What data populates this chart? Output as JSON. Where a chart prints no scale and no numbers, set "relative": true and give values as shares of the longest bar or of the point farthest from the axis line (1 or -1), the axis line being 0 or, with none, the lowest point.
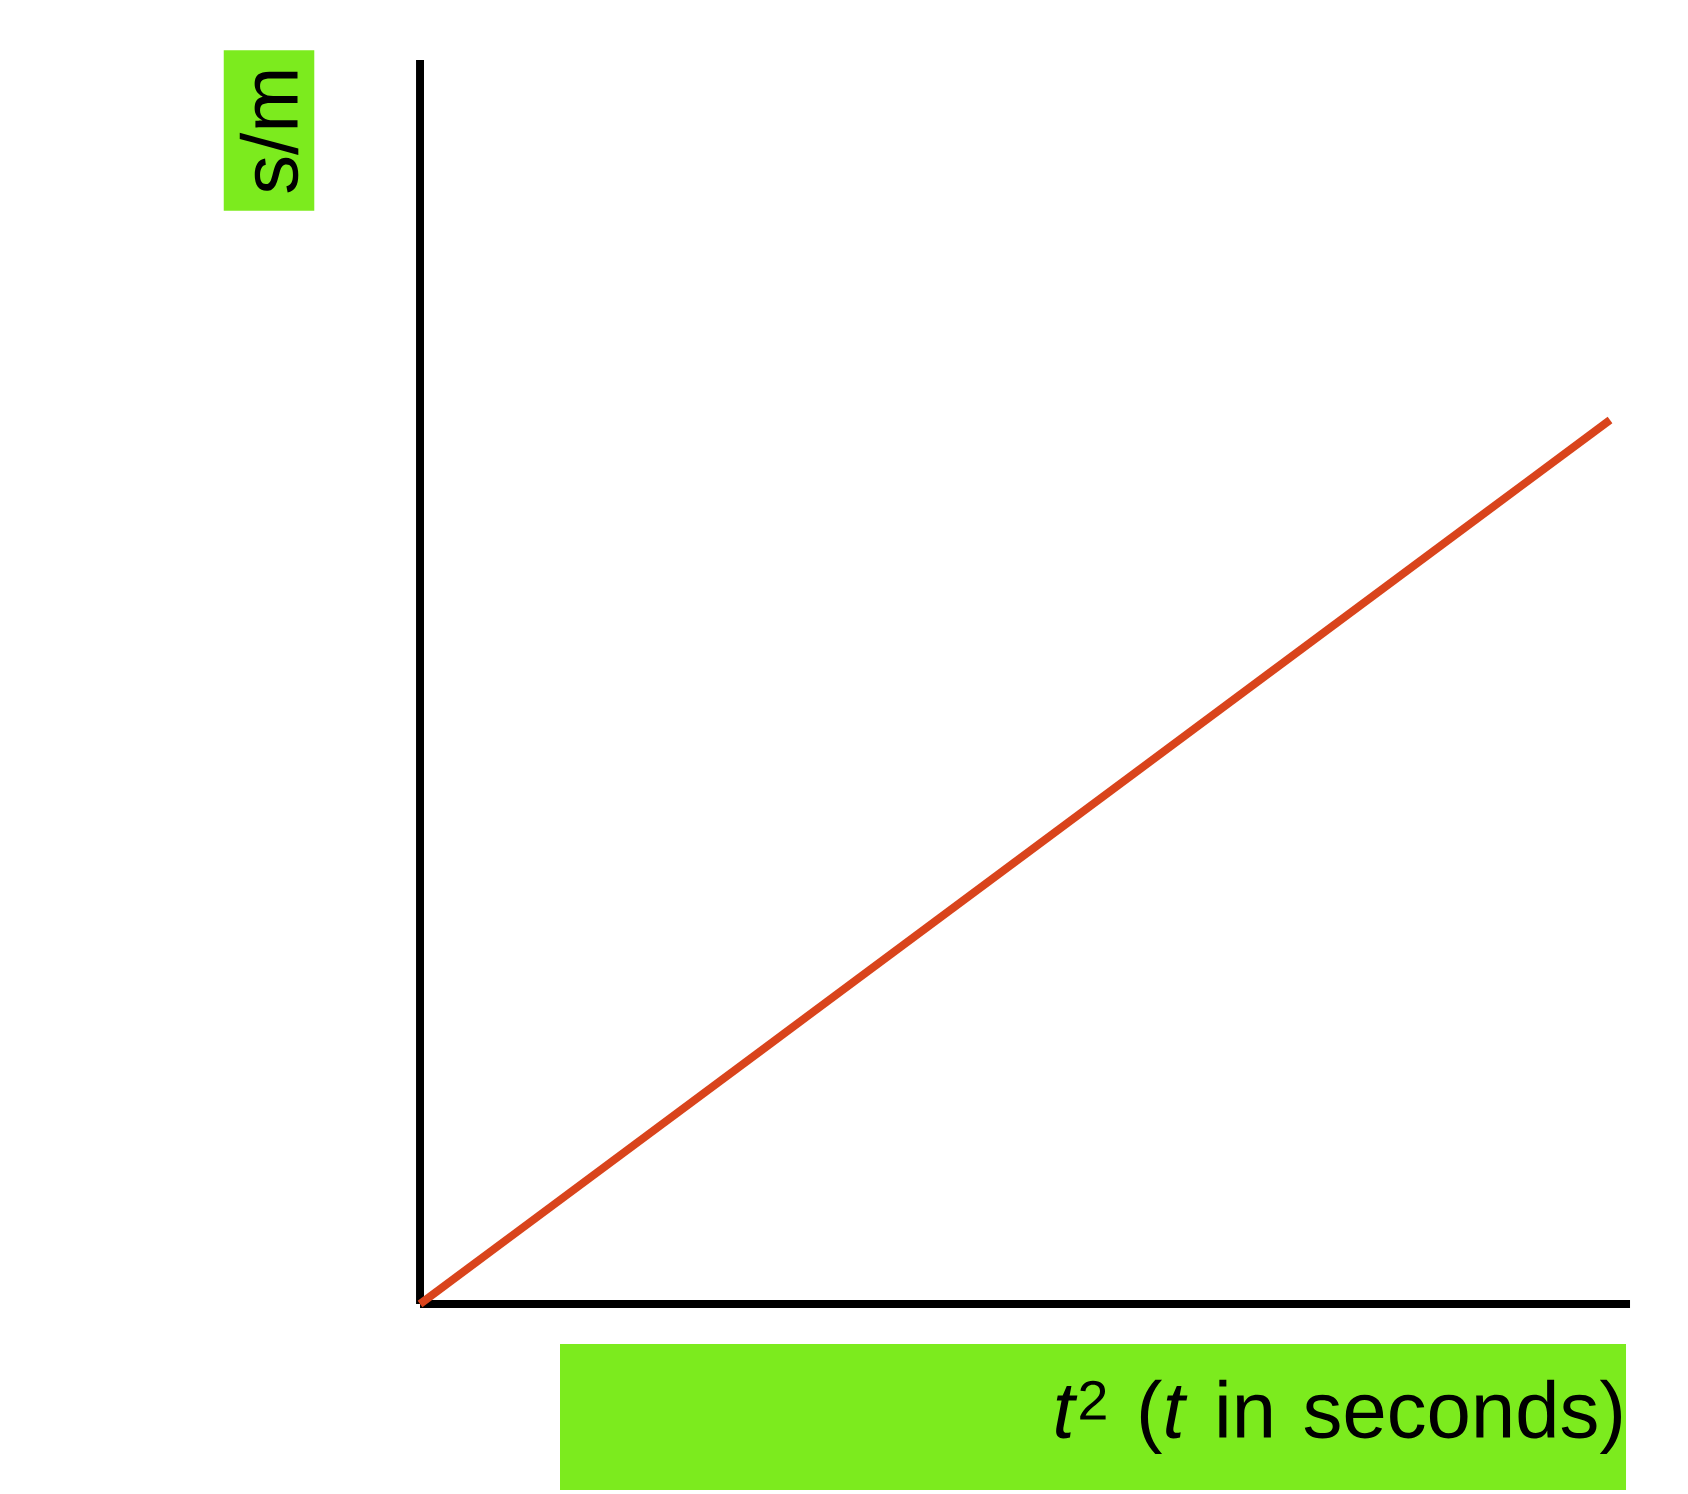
{
  "chart_data": {
    "type": "line",
    "relative": true,
    "categories": [
      null,
      null
    ],
    "series": [
      {
        "color": "#d9441c",
        "values": [
          0,
          1
        ]
      }
    ],
    "xlabel": "*t*$^{2}$ (*t* in seconds)",
    "ylabel": "s/m",
    "marker": "none",
    "line_style": "solid"
  }
}
